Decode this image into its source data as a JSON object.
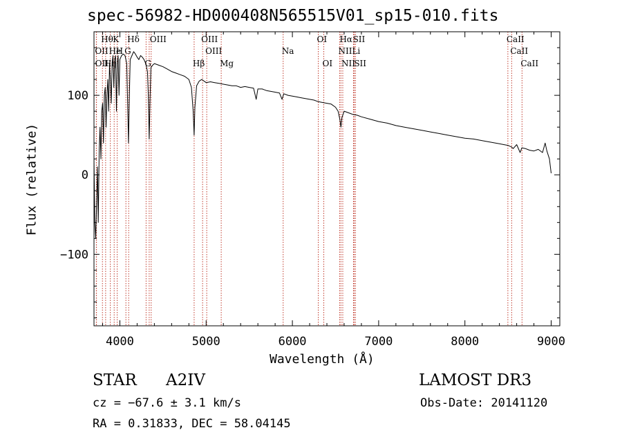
{
  "chart_data": {
    "type": "line",
    "title": "spec-56982-HD000408N565515V01_sp15-010.fits",
    "xlabel": "Wavelength (Å)",
    "ylabel": "Flux (relative)",
    "xlim": [
      3700,
      9100
    ],
    "ylim": [
      -190,
      180
    ],
    "x_ticks": [
      4000,
      5000,
      6000,
      7000,
      8000,
      9000
    ],
    "x_tick_labels": [
      "4000",
      "5000",
      "6000",
      "7000",
      "8000",
      "9000"
    ],
    "y_ticks": [
      -100,
      0,
      100
    ],
    "y_tick_labels": [
      "−100",
      "0",
      "100"
    ],
    "grid": false,
    "legend": "none",
    "series": [
      {
        "name": "spectrum",
        "x": [
          3700,
          3710,
          3720,
          3730,
          3740,
          3750,
          3760,
          3770,
          3780,
          3790,
          3800,
          3810,
          3820,
          3830,
          3840,
          3850,
          3860,
          3870,
          3880,
          3890,
          3900,
          3910,
          3920,
          3930,
          3940,
          3950,
          3960,
          3970,
          3980,
          3990,
          4000,
          4020,
          4040,
          4060,
          4080,
          4090,
          4100,
          4110,
          4120,
          4140,
          4160,
          4180,
          4200,
          4220,
          4240,
          4260,
          4280,
          4300,
          4320,
          4330,
          4340,
          4350,
          4360,
          4380,
          4400,
          4450,
          4500,
          4550,
          4600,
          4650,
          4700,
          4750,
          4800,
          4830,
          4850,
          4861,
          4870,
          4890,
          4920,
          4950,
          5000,
          5050,
          5100,
          5150,
          5200,
          5250,
          5300,
          5350,
          5400,
          5450,
          5500,
          5550,
          5580,
          5600,
          5650,
          5700,
          5750,
          5800,
          5850,
          5880,
          5900,
          5950,
          6000,
          6050,
          6100,
          6150,
          6200,
          6250,
          6300,
          6350,
          6400,
          6450,
          6500,
          6530,
          6550,
          6563,
          6575,
          6600,
          6650,
          6700,
          6750,
          6800,
          6900,
          7000,
          7100,
          7200,
          7300,
          7400,
          7500,
          7600,
          7700,
          7800,
          7900,
          8000,
          8100,
          8200,
          8300,
          8400,
          8450,
          8500,
          8540,
          8560,
          8600,
          8640,
          8660,
          8700,
          8750,
          8800,
          8850,
          8900,
          8930,
          8950,
          8980,
          9000
        ],
        "values": [
          20,
          -60,
          -80,
          -40,
          10,
          -60,
          30,
          60,
          20,
          80,
          90,
          40,
          100,
          110,
          60,
          100,
          120,
          80,
          140,
          120,
          90,
          140,
          150,
          110,
          145,
          150,
          80,
          140,
          150,
          100,
          145,
          150,
          152,
          150,
          140,
          90,
          40,
          100,
          145,
          150,
          155,
          152,
          148,
          145,
          150,
          148,
          145,
          140,
          130,
          100,
          45,
          95,
          135,
          138,
          140,
          138,
          136,
          133,
          130,
          128,
          126,
          124,
          120,
          110,
          80,
          50,
          85,
          112,
          118,
          120,
          116,
          117,
          116,
          115,
          114,
          113,
          112,
          112,
          110,
          111,
          110,
          109,
          95,
          108,
          108,
          106,
          105,
          104,
          103,
          95,
          102,
          100,
          99,
          98,
          97,
          96,
          95,
          94,
          92,
          91,
          90,
          89,
          85,
          80,
          70,
          60,
          72,
          80,
          78,
          76,
          75,
          73,
          70,
          67,
          65,
          62,
          60,
          58,
          56,
          54,
          52,
          50,
          48,
          46,
          45,
          43,
          41,
          39,
          38,
          37,
          35,
          33,
          38,
          28,
          34,
          33,
          31,
          30,
          32,
          28,
          40,
          30,
          20,
          2
        ]
      }
    ],
    "line_markers": [
      {
        "label": "Hθ",
        "x": 3798,
        "row": 1
      },
      {
        "label": "K",
        "x": 3934,
        "row": 1
      },
      {
        "label": "Hδ",
        "x": 4102,
        "row": 1
      },
      {
        "label": "OIII",
        "x": 4363,
        "row": 1
      },
      {
        "label": "OIII",
        "x": 4959,
        "row": 1
      },
      {
        "label": "OI",
        "x": 6300,
        "row": 1
      },
      {
        "label": "Hα",
        "x": 6563,
        "row": 1
      },
      {
        "label": "SII",
        "x": 6717,
        "row": 1
      },
      {
        "label": "CaII",
        "x": 8498,
        "row": 1
      },
      {
        "label": "OII",
        "x": 3727,
        "row": 2
      },
      {
        "label": "He",
        "x": 3889,
        "row": 2
      },
      {
        "label": "H",
        "x": 3969,
        "row": 2
      },
      {
        "label": "G",
        "x": 4070,
        "row": 2
      },
      {
        "label": "OIII",
        "x": 5007,
        "row": 2
      },
      {
        "label": "Na",
        "x": 5893,
        "row": 2
      },
      {
        "label": "NII",
        "x": 6548,
        "row": 2
      },
      {
        "label": "Li",
        "x": 6708,
        "row": 2
      },
      {
        "label": "CaII",
        "x": 8542,
        "row": 2
      },
      {
        "label": "OII",
        "x": 3729,
        "row": 3
      },
      {
        "label": "Hη",
        "x": 3835,
        "row": 3
      },
      {
        "label": "G",
        "x": 4304,
        "row": 3
      },
      {
        "label": "Hβ",
        "x": 4861,
        "row": 3
      },
      {
        "label": "Mg",
        "x": 5175,
        "row": 3
      },
      {
        "label": "OI",
        "x": 6364,
        "row": 3
      },
      {
        "label": "NII",
        "x": 6584,
        "row": 3
      },
      {
        "label": "SII",
        "x": 6731,
        "row": 3
      },
      {
        "label": "CaII",
        "x": 8662,
        "row": 3
      }
    ],
    "marker_lines_x": [
      3727,
      3729,
      3798,
      3835,
      3889,
      3934,
      3969,
      4070,
      4102,
      4304,
      4340,
      4363,
      4861,
      4959,
      5007,
      5175,
      5893,
      6300,
      6364,
      6548,
      6563,
      6584,
      6708,
      6717,
      6731,
      8498,
      8542,
      8662
    ]
  },
  "info": {
    "object_type": "STAR",
    "spectral_class": "A2IV",
    "survey": "LAMOST DR3",
    "velocity": "cz = −67.6 ± 3.1 km/s",
    "obs_date": "Obs-Date: 20141120",
    "coords": "RA =    0.31833, DEC =   58.04145"
  }
}
